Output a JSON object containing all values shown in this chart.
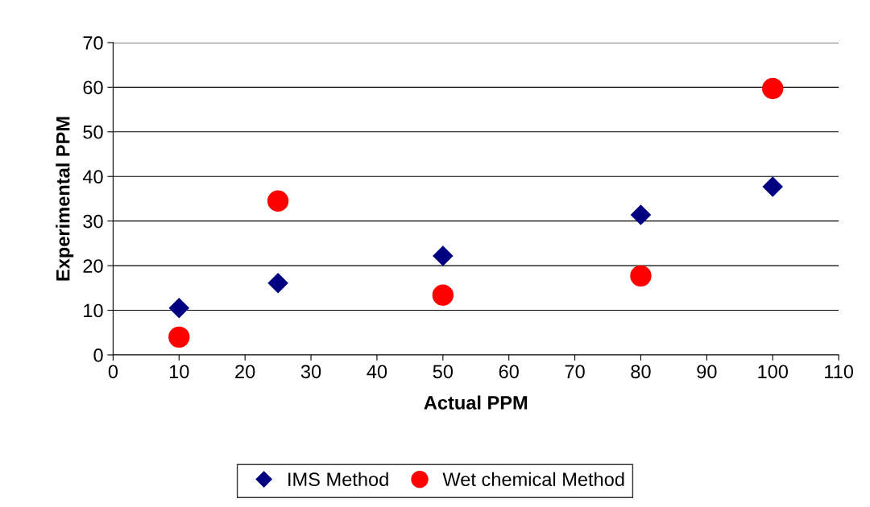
{
  "chart_data": {
    "type": "scatter",
    "xlabel": "Actual PPM",
    "ylabel": "Experimental PPM",
    "x": [
      10,
      25,
      50,
      80,
      100
    ],
    "series": [
      {
        "name": "IMS Method",
        "color": "#000080",
        "marker": "diamond",
        "values": [
          10.5,
          16.1,
          22.2,
          31.4,
          37.7
        ]
      },
      {
        "name": "Wet chemical Method",
        "color": "#ff0000",
        "marker": "circle",
        "values": [
          4.0,
          34.5,
          13.4,
          17.7,
          59.7
        ]
      }
    ],
    "xlim": [
      0,
      110
    ],
    "xticks": [
      0,
      10,
      20,
      30,
      40,
      50,
      60,
      70,
      80,
      90,
      100,
      110
    ],
    "ylim": [
      0,
      70
    ],
    "yticks": [
      0,
      10,
      20,
      30,
      40,
      50,
      60,
      70
    ],
    "grid": "y",
    "legend": "bottom"
  }
}
